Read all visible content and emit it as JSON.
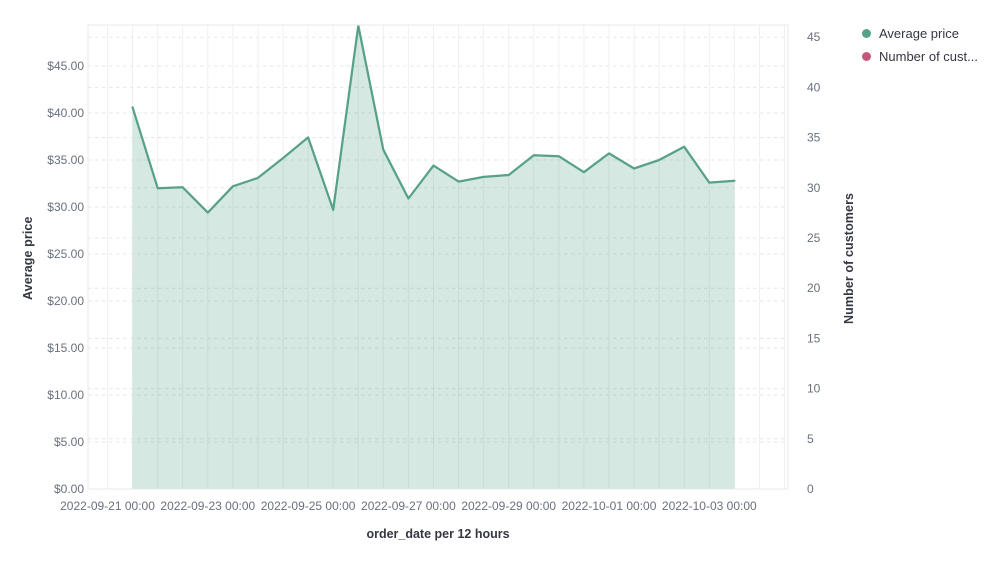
{
  "window": {
    "background": "#ffffff"
  },
  "legend": {
    "position": "top-right",
    "items": [
      {
        "label": "Average price",
        "color": "#57a287"
      },
      {
        "label": "Number of cust...",
        "color": "#c4587a"
      }
    ]
  },
  "axes": {
    "left_title": "Average price",
    "right_title": "Number of customers",
    "x_title": "order_date per 12 hours"
  },
  "chart_data": {
    "type": "area",
    "title": "",
    "xlabel": "order_date per 12 hours",
    "legend_position": "top-right",
    "grid": {
      "vertical": "solid every 12 hours",
      "horizontal": "dashed at each tick"
    },
    "y_left": {
      "label": "Average price",
      "min": 0,
      "max": 45,
      "tick_step": 5,
      "tick_labels": [
        "$0.00",
        "$5.00",
        "$10.00",
        "$15.00",
        "$20.00",
        "$25.00",
        "$30.00",
        "$35.00",
        "$40.00",
        "$45.00"
      ]
    },
    "y_right": {
      "label": "Number of customers",
      "min": 0,
      "max": 45,
      "tick_step": 5,
      "tick_labels": [
        "0",
        "5",
        "10",
        "15",
        "20",
        "25",
        "30",
        "35",
        "40",
        "45"
      ]
    },
    "x_tick_labels": [
      "2022-09-21 00:00",
      "2022-09-23 00:00",
      "2022-09-25 00:00",
      "2022-09-27 00:00",
      "2022-09-29 00:00",
      "2022-10-01 00:00",
      "2022-10-03 00:00"
    ],
    "x": [
      "2022-09-21 12:00",
      "2022-09-22 00:00",
      "2022-09-22 12:00",
      "2022-09-23 00:00",
      "2022-09-23 12:00",
      "2022-09-24 00:00",
      "2022-09-24 12:00",
      "2022-09-25 00:00",
      "2022-09-25 12:00",
      "2022-09-26 00:00",
      "2022-09-26 12:00",
      "2022-09-27 00:00",
      "2022-09-27 12:00",
      "2022-09-28 00:00",
      "2022-09-28 12:00",
      "2022-09-29 00:00",
      "2022-09-29 12:00",
      "2022-09-30 00:00",
      "2022-09-30 12:00",
      "2022-10-01 00:00",
      "2022-10-01 12:00",
      "2022-10-02 00:00",
      "2022-10-02 12:00",
      "2022-10-03 00:00",
      "2022-10-03 12:00"
    ],
    "series": [
      {
        "name": "Average price",
        "axis": "left",
        "mark": "area",
        "color": "#57a287",
        "fill_opacity": 0.25,
        "values": [
          40.6,
          32.0,
          32.1,
          29.4,
          32.2,
          33.1,
          35.2,
          37.4,
          29.7,
          49.3,
          36.1,
          30.9,
          34.4,
          32.7,
          33.2,
          33.4,
          35.5,
          35.4,
          33.7,
          35.7,
          34.1,
          35.0,
          36.4,
          32.6,
          32.8
        ]
      },
      {
        "name": "Number of customers",
        "axis": "right",
        "mark": "line",
        "color": "#c4587a",
        "values": []
      }
    ],
    "style": {
      "tick_label_color": "#69707d",
      "axis_title_color": "#343741",
      "vertical_grid_color": "#eef0f3",
      "horizontal_grid_color": "#e3e7ed",
      "border_color": "#e4e8ed"
    }
  }
}
